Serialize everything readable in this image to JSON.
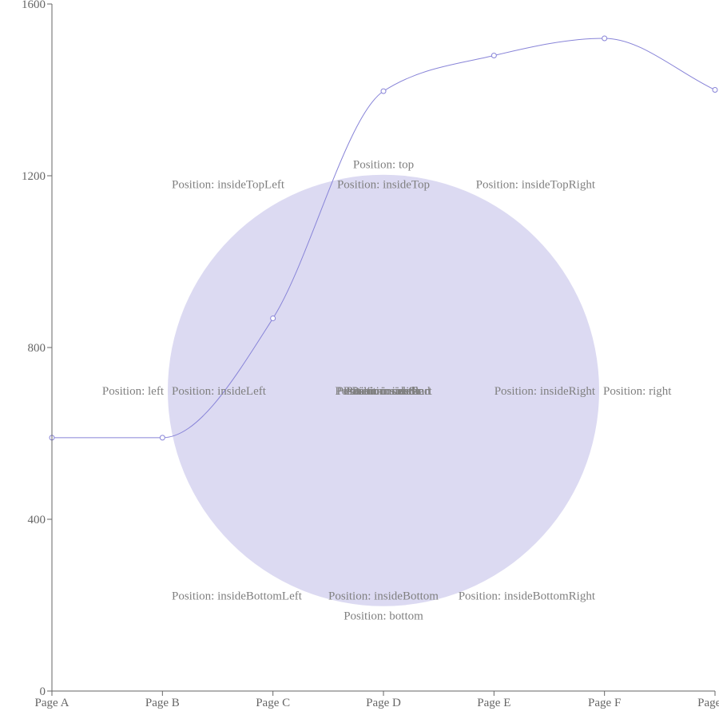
{
  "chart_data": {
    "type": "line",
    "categories": [
      "Page A",
      "Page B",
      "Page C",
      "Page D",
      "Page E",
      "Page F",
      "Page G"
    ],
    "series": [
      {
        "values": [
          590,
          590,
          868,
          1397,
          1480,
          1520,
          1400
        ]
      }
    ],
    "ylim": [
      0,
      1600
    ],
    "yticks": [
      0,
      400,
      800,
      1200,
      1600
    ],
    "grid": false,
    "curve": "monotone",
    "colors": {
      "line": "#8884d8",
      "circle_fill": "#dcdaf2",
      "label": "#808080",
      "axis": "#666666"
    },
    "reference_circle": {
      "x": "Page D",
      "y": 700,
      "labels": [
        {
          "position": "top",
          "text": "Position: top"
        },
        {
          "position": "insideTop",
          "text": "Position: insideTop"
        },
        {
          "position": "insideTopLeft",
          "text": "Position: insideTopLeft"
        },
        {
          "position": "insideTopRight",
          "text": "Position: insideTopRight"
        },
        {
          "position": "left",
          "text": "Position: left"
        },
        {
          "position": "insideLeft",
          "text": "Position: insideLeft"
        },
        {
          "position": "insideRight",
          "text": "Position: insideRight"
        },
        {
          "position": "right",
          "text": "Position: right"
        },
        {
          "position": "insideBottomLeft",
          "text": "Position: insideBottomLeft"
        },
        {
          "position": "insideBottom",
          "text": "Position: insideBottom"
        },
        {
          "position": "insideBottomRight",
          "text": "Position: insideBottomRight"
        },
        {
          "position": "bottom",
          "text": "Position: bottom"
        },
        {
          "position": "center",
          "text": "Position: center"
        },
        {
          "position": "inside",
          "text": "Position: inside"
        },
        {
          "position": "outside",
          "text": "Position: outside"
        },
        {
          "position": "insideStart",
          "text": "Position: insideStart"
        },
        {
          "position": "insideEnd",
          "text": "Position: insideEnd"
        },
        {
          "position": "end",
          "text": "Position: end"
        }
      ]
    }
  }
}
